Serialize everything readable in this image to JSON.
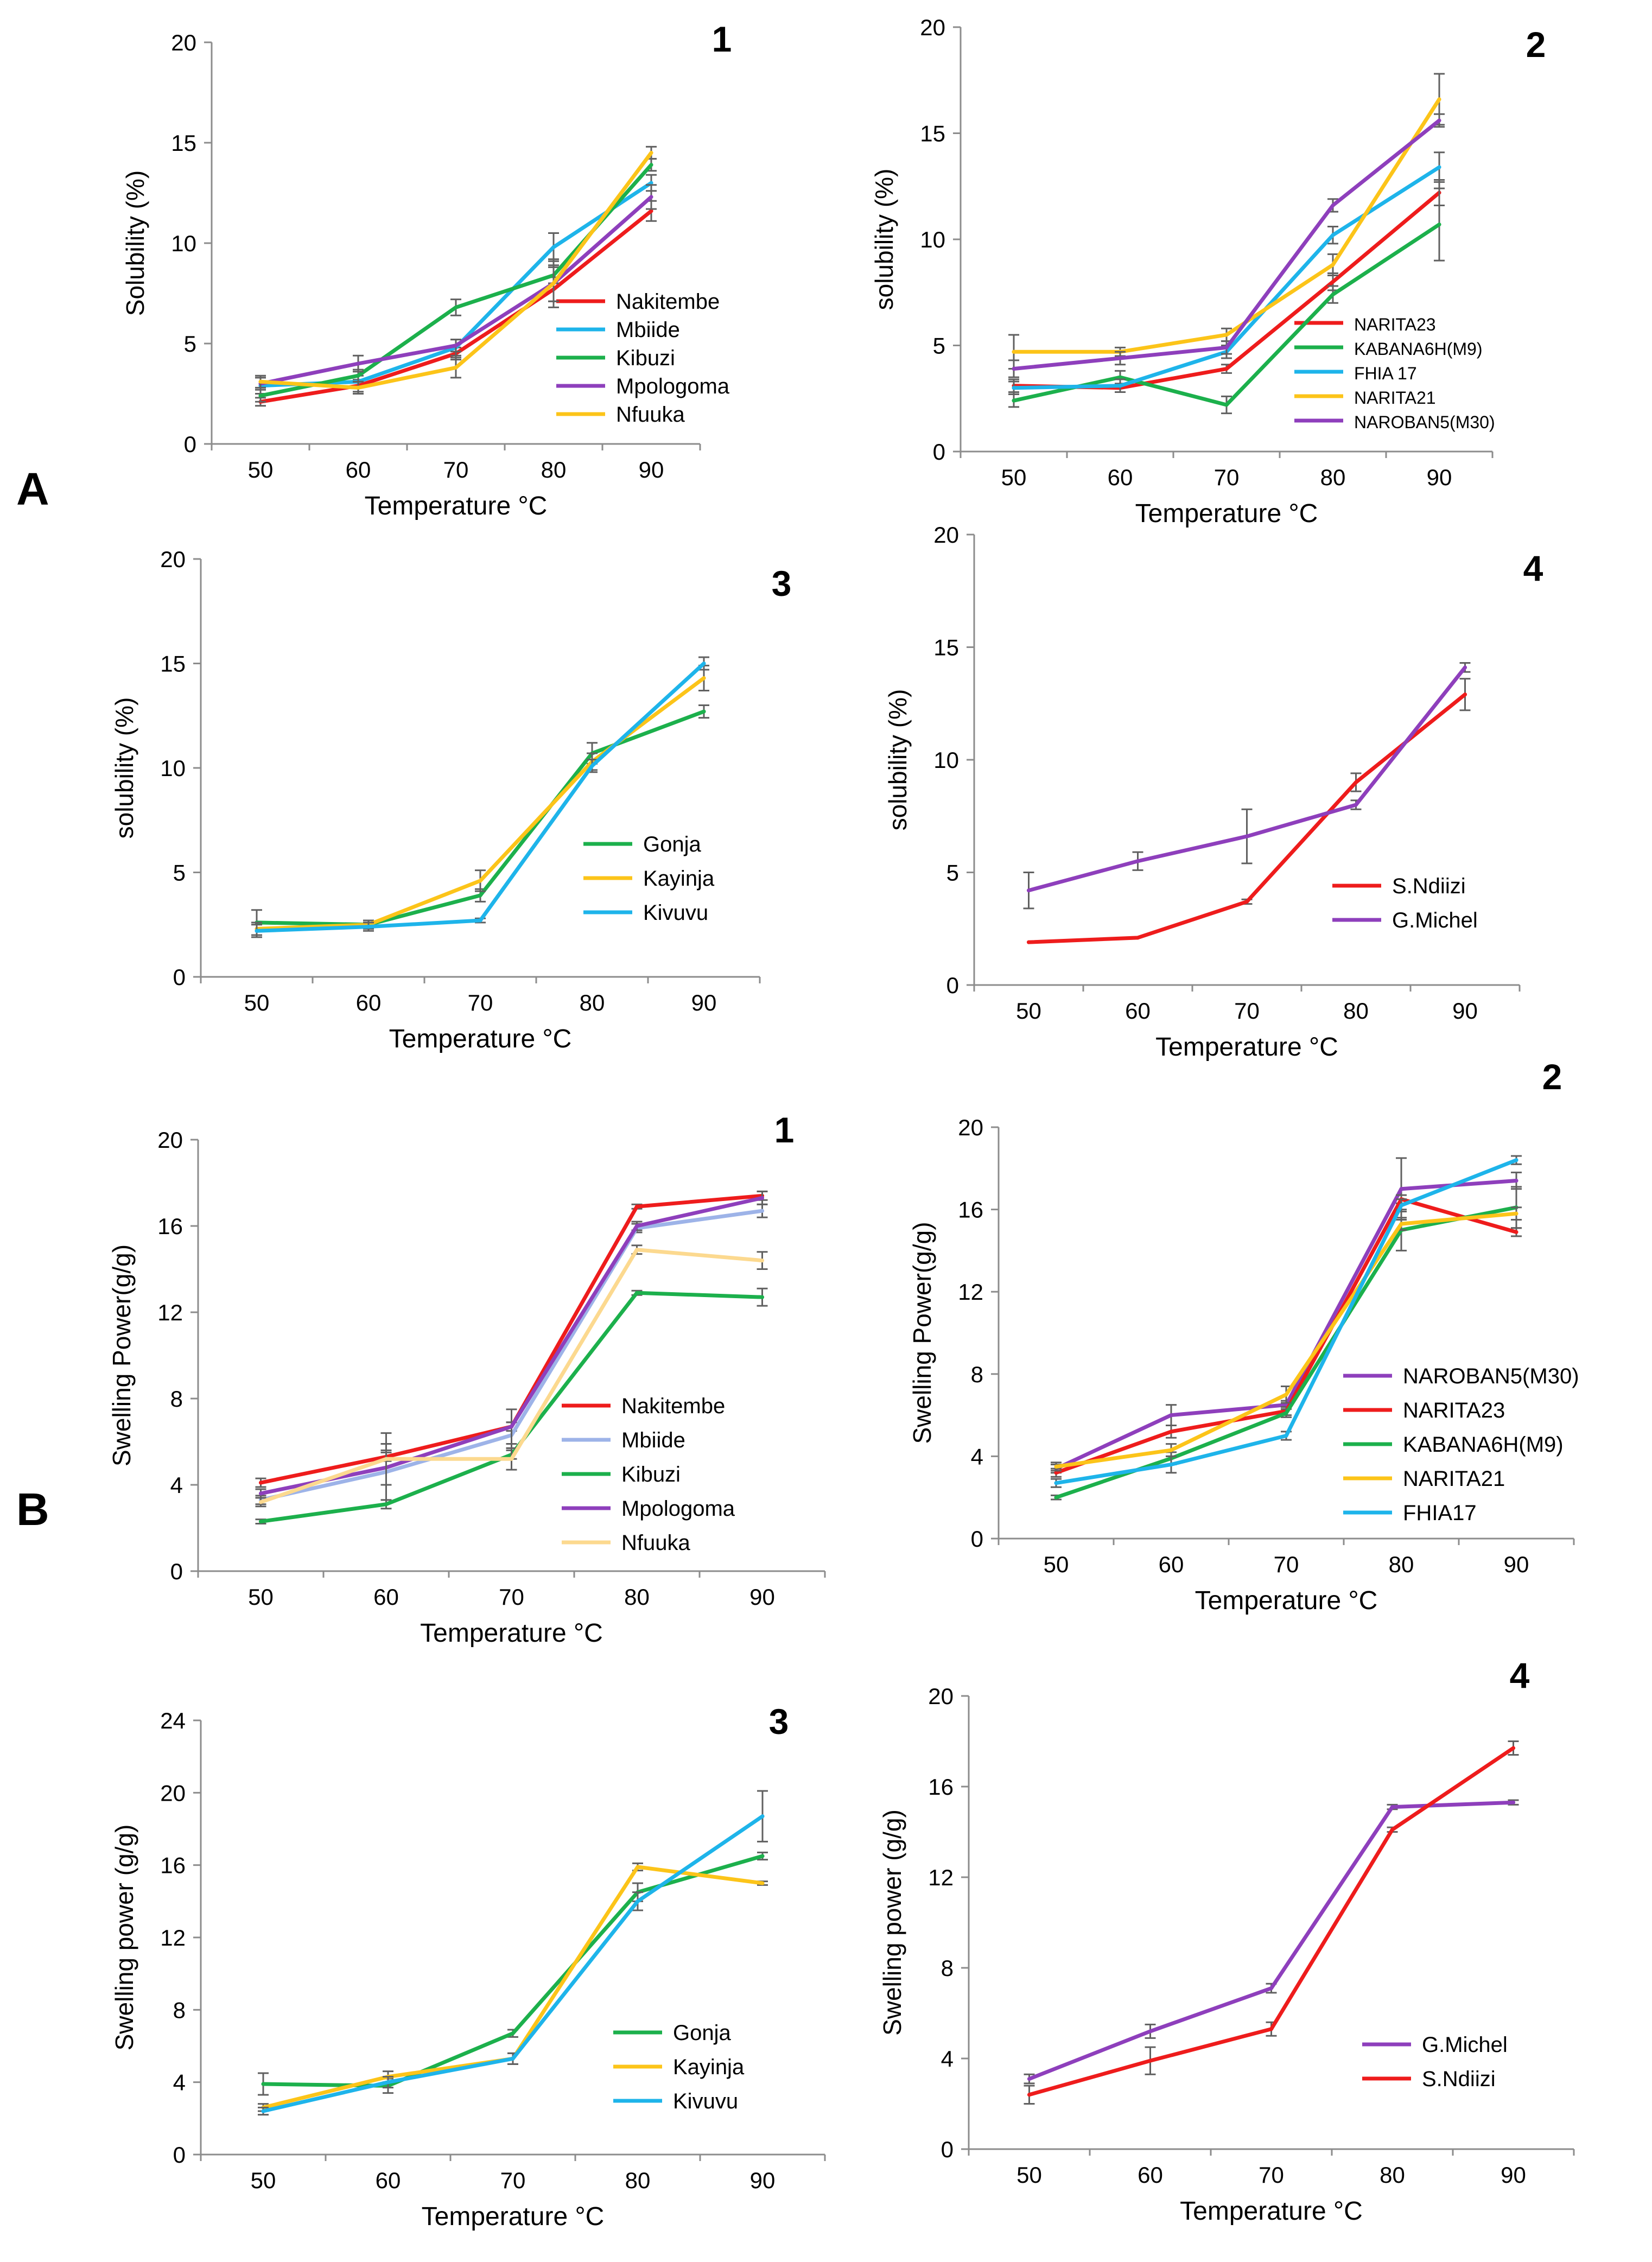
{
  "figure": {
    "section_labels": [
      "A",
      "B"
    ]
  },
  "chart_data": [
    {
      "id": "A1",
      "section": "A",
      "type": "line",
      "panel_label": "1",
      "title": "",
      "xlabel": "Temperature °C",
      "ylabel": "Solubility (%)",
      "categories": [
        50,
        60,
        70,
        80,
        90
      ],
      "ylim": [
        0,
        20
      ],
      "yticks": [
        0,
        5,
        10,
        15,
        20
      ],
      "grid": false,
      "legend": "bottom-right",
      "series": [
        {
          "name": "Nakitembe",
          "color": "#ee1c1c",
          "values": [
            2.1,
            2.9,
            4.5,
            7.7,
            11.6
          ],
          "errors": [
            0.2,
            0.3,
            0.3,
            0.6,
            0.5
          ]
        },
        {
          "name": "Mbiide",
          "color": "#1eb4ea",
          "values": [
            2.9,
            3.1,
            4.8,
            9.8,
            13.0
          ],
          "errors": [
            0.4,
            0.3,
            0.4,
            0.7,
            0.4
          ]
        },
        {
          "name": "Kibuzi",
          "color": "#1cb04c",
          "values": [
            2.4,
            3.4,
            6.8,
            8.4,
            13.9
          ],
          "errors": [
            0.3,
            0.3,
            0.4,
            0.4,
            0.3
          ]
        },
        {
          "name": "Mpologoma",
          "color": "#8e3fbc",
          "values": [
            3.0,
            4.0,
            4.9,
            8.0,
            12.3
          ],
          "errors": [
            0.3,
            0.4,
            0.3,
            1.2,
            0.6
          ]
        },
        {
          "name": "Nfuuka",
          "color": "#fcc419",
          "values": [
            3.1,
            2.8,
            3.8,
            8.0,
            14.5
          ],
          "errors": [
            0.3,
            0.3,
            0.5,
            0.9,
            0.3
          ]
        }
      ]
    },
    {
      "id": "A2",
      "section": "A",
      "type": "line",
      "panel_label": "2",
      "title": "",
      "xlabel": "Temperature °C",
      "ylabel": "solubility (%)",
      "categories": [
        50,
        60,
        70,
        80,
        90
      ],
      "ylim": [
        0,
        20
      ],
      "yticks": [
        0,
        5,
        10,
        15,
        20
      ],
      "grid": false,
      "legend": "bottom-right",
      "series": [
        {
          "name": "NARITA23",
          "color": "#ee1c1c",
          "values": [
            3.1,
            3.0,
            3.9,
            8.0,
            12.2
          ],
          "errors": [
            0.3,
            0.2,
            0.2,
            0.4,
            0.6
          ]
        },
        {
          "name": "KABANA6H(M9)",
          "color": "#1cb04c",
          "values": [
            2.4,
            3.5,
            2.2,
            7.4,
            10.7
          ],
          "errors": [
            0.3,
            0.3,
            0.4,
            0.4,
            1.7
          ]
        },
        {
          "name": "FHIA 17",
          "color": "#1eb4ea",
          "values": [
            3.0,
            3.1,
            4.7,
            10.2,
            13.4
          ],
          "errors": [
            0.3,
            0.3,
            0.3,
            0.4,
            0.7
          ]
        },
        {
          "name": "NARITA21",
          "color": "#fcc419",
          "values": [
            4.7,
            4.7,
            5.5,
            8.8,
            16.6
          ],
          "errors": [
            0.8,
            0.2,
            0.3,
            0.5,
            1.2
          ]
        },
        {
          "name": "NAROBAN5(M30)",
          "color": "#8e3fbc",
          "values": [
            3.9,
            4.4,
            4.9,
            11.6,
            15.6
          ],
          "errors": [
            0.4,
            0.3,
            0.3,
            0.3,
            0.3
          ]
        }
      ]
    },
    {
      "id": "A3",
      "section": "A",
      "type": "line",
      "panel_label": "3",
      "title": "",
      "xlabel": "Temperature °C",
      "ylabel": "solubility (%)",
      "categories": [
        50,
        60,
        70,
        80,
        90
      ],
      "ylim": [
        0,
        20
      ],
      "yticks": [
        0,
        5,
        10,
        15,
        20
      ],
      "grid": false,
      "legend": "bottom-right",
      "series": [
        {
          "name": "Gonja",
          "color": "#1cb04c",
          "values": [
            2.6,
            2.5,
            3.9,
            10.7,
            12.7
          ],
          "errors": [
            0.6,
            0.2,
            0.3,
            0.5,
            0.3
          ]
        },
        {
          "name": "Kayinja",
          "color": "#fcc419",
          "values": [
            2.3,
            2.5,
            4.6,
            10.3,
            14.3
          ],
          "errors": [
            0.3,
            0.1,
            0.5,
            0.4,
            0.6
          ]
        },
        {
          "name": "Kivuvu",
          "color": "#1eb4ea",
          "values": [
            2.2,
            2.4,
            2.7,
            10.1,
            15.0
          ],
          "errors": [
            0.3,
            0.2,
            0.1,
            0.3,
            0.3
          ]
        }
      ]
    },
    {
      "id": "A4",
      "section": "A",
      "type": "line",
      "panel_label": "4",
      "title": "",
      "xlabel": "Temperature °C",
      "ylabel": "solubility (%)",
      "categories": [
        50,
        60,
        70,
        80,
        90
      ],
      "ylim": [
        0,
        20
      ],
      "yticks": [
        0,
        5,
        10,
        15,
        20
      ],
      "grid": false,
      "legend": "bottom-right",
      "series": [
        {
          "name": "S.Ndiizi",
          "color": "#ee1c1c",
          "values": [
            1.9,
            2.1,
            3.7,
            9.0,
            12.9
          ],
          "errors": [
            0.0,
            0.0,
            0.1,
            0.4,
            0.7
          ]
        },
        {
          "name": "G.Michel",
          "color": "#8e3fbc",
          "values": [
            4.2,
            5.5,
            6.6,
            8.0,
            14.1
          ],
          "errors": [
            0.8,
            0.4,
            1.2,
            0.2,
            0.2
          ]
        }
      ]
    },
    {
      "id": "B1",
      "section": "B",
      "type": "line",
      "panel_label": "1",
      "title": "",
      "xlabel": "Temperature °C",
      "ylabel": "Swelling Power(g/g)",
      "categories": [
        50,
        60,
        70,
        80,
        90
      ],
      "ylim": [
        0,
        20
      ],
      "yticks": [
        0,
        4,
        8,
        12,
        16,
        20
      ],
      "grid": false,
      "legend": "bottom-right",
      "series": [
        {
          "name": "Nakitembe",
          "color": "#ee1c1c",
          "values": [
            4.1,
            5.3,
            6.7,
            16.9,
            17.4
          ],
          "errors": [
            0.2,
            0.2,
            0.2,
            0.1,
            0.2
          ]
        },
        {
          "name": "Mbiide",
          "color": "#9db3e8",
          "values": [
            3.3,
            4.6,
            6.3,
            15.9,
            16.7
          ],
          "errors": [
            0.2,
            1.3,
            0.6,
            0.2,
            0.3
          ]
        },
        {
          "name": "Kibuzi",
          "color": "#1cb04c",
          "values": [
            2.3,
            3.1,
            5.4,
            12.9,
            12.7
          ],
          "errors": [
            0.1,
            0.2,
            0.2,
            0.1,
            0.4
          ]
        },
        {
          "name": "Mpologoma",
          "color": "#8e3fbc",
          "values": [
            3.6,
            4.8,
            6.7,
            16.0,
            17.3
          ],
          "errors": [
            0.2,
            0.8,
            0.8,
            0.2,
            0.3
          ]
        },
        {
          "name": "Nfuuka",
          "color": "#fcd98f",
          "values": [
            3.2,
            5.2,
            5.2,
            14.9,
            14.4
          ],
          "errors": [
            0.2,
            1.2,
            0.5,
            0.2,
            0.4
          ]
        }
      ]
    },
    {
      "id": "B2",
      "section": "B",
      "type": "line",
      "panel_label": "2",
      "title": "",
      "xlabel": "Temperature °C",
      "ylabel": "Swelling Power(g/g)",
      "categories": [
        50,
        60,
        70,
        80,
        90
      ],
      "ylim": [
        0,
        20
      ],
      "yticks": [
        0,
        4,
        8,
        12,
        16,
        20
      ],
      "grid": false,
      "legend": "bottom-right",
      "series": [
        {
          "name": "NAROBAN5(M30)",
          "color": "#8e3fbc",
          "values": [
            3.4,
            6.0,
            6.5,
            17.0,
            17.4
          ],
          "errors": [
            0.2,
            0.5,
            0.2,
            1.5,
            0.4
          ]
        },
        {
          "name": "NARITA23",
          "color": "#ee1c1c",
          "values": [
            3.2,
            5.2,
            6.2,
            16.5,
            14.9
          ],
          "errors": [
            0.2,
            0.3,
            0.2,
            0.2,
            0.2
          ]
        },
        {
          "name": "KABANA6H(M9)",
          "color": "#1cb04c",
          "values": [
            2.0,
            3.9,
            6.1,
            15.0,
            16.1
          ],
          "errors": [
            0.1,
            0.3,
            0.2,
            1.0,
            1.0
          ]
        },
        {
          "name": "NARITA21",
          "color": "#fcc419",
          "values": [
            3.5,
            4.3,
            7.0,
            15.3,
            15.8
          ],
          "errors": [
            0.2,
            0.3,
            0.4,
            0.3,
            0.3
          ]
        },
        {
          "name": "FHIA17",
          "color": "#1eb4ea",
          "values": [
            2.7,
            3.6,
            5.0,
            16.2,
            18.4
          ],
          "errors": [
            0.2,
            0.4,
            0.2,
            0.3,
            0.2
          ]
        }
      ]
    },
    {
      "id": "B3",
      "section": "B",
      "type": "line",
      "panel_label": "3",
      "title": "",
      "xlabel": "Temperature °C",
      "ylabel": "Swelling power (g/g)",
      "categories": [
        50,
        60,
        70,
        80,
        90
      ],
      "ylim": [
        0,
        24
      ],
      "yticks": [
        0,
        4,
        8,
        12,
        16,
        20,
        24
      ],
      "grid": false,
      "legend": "bottom-right",
      "series": [
        {
          "name": "Gonja",
          "color": "#1cb04c",
          "values": [
            3.9,
            3.8,
            6.7,
            14.5,
            16.5
          ],
          "errors": [
            0.6,
            0.4,
            0.2,
            0.5,
            0.2
          ]
        },
        {
          "name": "Kayinja",
          "color": "#fcc419",
          "values": [
            2.6,
            4.3,
            5.3,
            15.9,
            15.0
          ],
          "errors": [
            0.2,
            0.3,
            0.3,
            0.2,
            0.1
          ]
        },
        {
          "name": "Kivuvu",
          "color": "#1eb4ea",
          "values": [
            2.4,
            4.0,
            5.3,
            14.0,
            18.7
          ],
          "errors": [
            0.2,
            0.3,
            0.3,
            0.5,
            1.4
          ]
        }
      ]
    },
    {
      "id": "B4",
      "section": "B",
      "type": "line",
      "panel_label": "4",
      "title": "",
      "xlabel": "Temperature °C",
      "ylabel": "Swelling power (g/g)",
      "categories": [
        50,
        60,
        70,
        80,
        90
      ],
      "ylim": [
        0,
        20
      ],
      "yticks": [
        0,
        4,
        8,
        12,
        16,
        20
      ],
      "grid": false,
      "legend": "bottom-right",
      "series": [
        {
          "name": "G.Michel",
          "color": "#8e3fbc",
          "values": [
            3.1,
            5.2,
            7.1,
            15.1,
            15.3
          ],
          "errors": [
            0.2,
            0.3,
            0.2,
            0.1,
            0.1
          ]
        },
        {
          "name": "S.Ndiizi",
          "color": "#ee1c1c",
          "values": [
            2.4,
            3.9,
            5.3,
            14.1,
            17.7
          ],
          "errors": [
            0.4,
            0.6,
            0.3,
            0.1,
            0.3
          ]
        }
      ]
    }
  ]
}
